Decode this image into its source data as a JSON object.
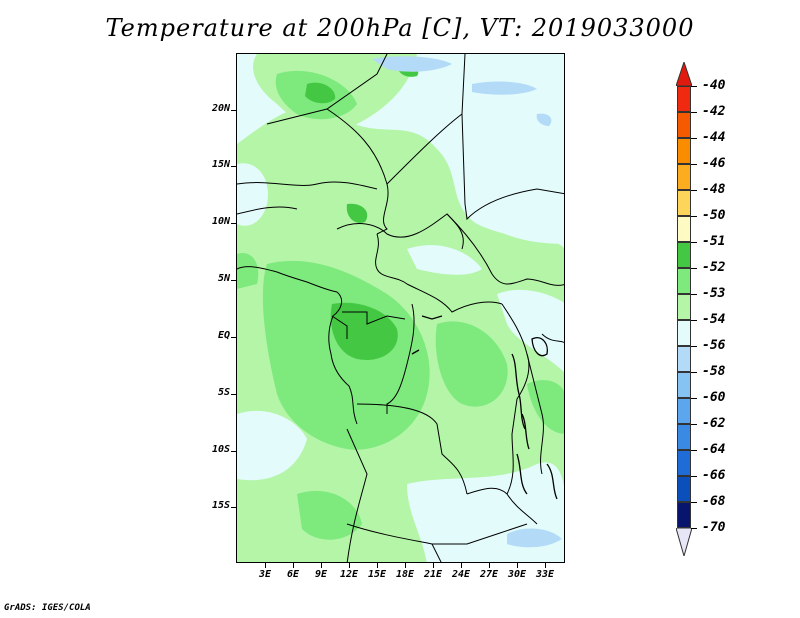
{
  "title": "Temperature at 200hPa [C], VT: 2019033000",
  "credit": "GrADS: IGES/COLA",
  "map": {
    "variable": "Temperature at 200hPa",
    "units": "C",
    "valid_time": "2019033000",
    "lat_labels": [
      "20N",
      "15N",
      "10N",
      "5N",
      "EQ",
      "5S",
      "10S",
      "15S"
    ],
    "lon_labels": [
      "3E",
      "6E",
      "9E",
      "12E",
      "15E",
      "18E",
      "21E",
      "24E",
      "27E",
      "30E",
      "33E"
    ],
    "fill_colors": {
      "band_51_52": "#44c844",
      "band_52_53": "#7eea7e",
      "band_53_54": "#b4f5a8",
      "band_54_56": "#e3fbfb",
      "band_56_58": "#b3dbf7"
    }
  },
  "colorbar": {
    "labels": [
      "-40",
      "-42",
      "-44",
      "-46",
      "-48",
      "-50",
      "-51",
      "-52",
      "-53",
      "-54",
      "-56",
      "-58",
      "-60",
      "-62",
      "-64",
      "-66",
      "-68",
      "-70"
    ],
    "colors": [
      "#f02a10",
      "#f55a00",
      "#fa8c00",
      "#fbad1f",
      "#fdd55b",
      "#fefac4",
      "#44c844",
      "#7eea7e",
      "#b4f5a8",
      "#e3fbfb",
      "#b3dbf7",
      "#86c3f2",
      "#5ba6ec",
      "#3a89e3",
      "#1f6cd7",
      "#0b4fba",
      "#083497",
      "#07166c"
    ],
    "top_arrow_color": "#e01b0d",
    "bottom_arrow_color": "#e6e6f7"
  }
}
